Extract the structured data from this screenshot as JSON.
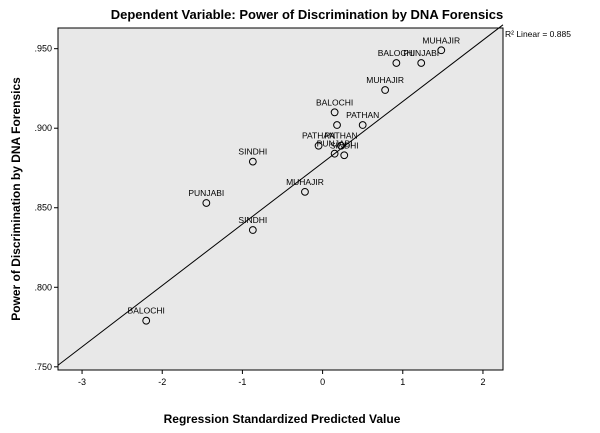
{
  "chart_data": {
    "type": "scatter",
    "title": "Dependent Variable: Power of Discrimination by DNA Forensics",
    "xlabel": "Regression Standardized Predicted Value",
    "ylabel": "Power of Discrimination by DNA Forensics",
    "xlim": [
      -3.3,
      2.25
    ],
    "ylim": [
      0.748,
      0.963
    ],
    "xticks": [
      -3,
      -2,
      -1,
      0,
      1,
      2
    ],
    "yticks": [
      0.75,
      0.8,
      0.85,
      0.9,
      0.95
    ],
    "xtick_labels": [
      "-3",
      "-2",
      "-1",
      "0",
      "1",
      "2"
    ],
    "ytick_labels": [
      ".750",
      ".800",
      ".850",
      ".900",
      ".950"
    ],
    "grid": false,
    "background": "#e8e8e8",
    "points": [
      {
        "label": "BALOCHI",
        "x": -2.2,
        "y": 0.779
      },
      {
        "label": "PUNJABI",
        "x": -1.45,
        "y": 0.853
      },
      {
        "label": "SINDHI",
        "x": -0.87,
        "y": 0.836
      },
      {
        "label": "SINDHI",
        "x": -0.87,
        "y": 0.879
      },
      {
        "label": "PATHAN",
        "x": -0.05,
        "y": 0.889
      },
      {
        "label": "PUNJABI",
        "x": 0.15,
        "y": 0.884
      },
      {
        "label": "MUHAJIR",
        "x": -0.22,
        "y": 0.86
      },
      {
        "label": "PATHAN",
        "x": 0.23,
        "y": 0.889
      },
      {
        "label": "SINDHI",
        "x": 0.27,
        "y": 0.883
      },
      {
        "label": "BALOCHI",
        "x": 0.15,
        "y": 0.91
      },
      {
        "label": "",
        "x": 0.18,
        "y": 0.902
      },
      {
        "label": "PATHAN",
        "x": 0.5,
        "y": 0.902
      },
      {
        "label": "MUHAJIR",
        "x": 0.78,
        "y": 0.924
      },
      {
        "label": "BALOCHI",
        "x": 0.92,
        "y": 0.941
      },
      {
        "label": "PUNJABI",
        "x": 1.23,
        "y": 0.941
      },
      {
        "label": "MUHAJIR",
        "x": 1.48,
        "y": 0.949
      }
    ],
    "fit_line": {
      "type": "linear",
      "x": [
        -3.3,
        2.25
      ],
      "y": [
        0.751,
        0.965
      ]
    },
    "r2_label": "R² Linear = 0.885"
  }
}
